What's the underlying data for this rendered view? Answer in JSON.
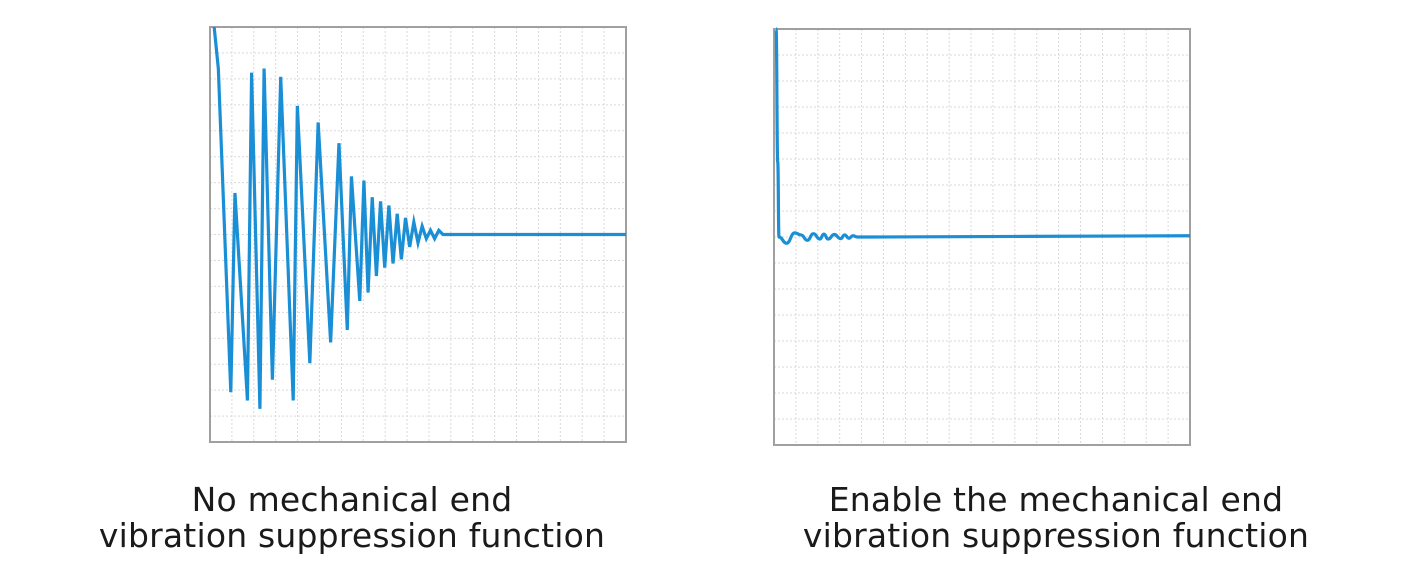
{
  "chart_data": [
    {
      "type": "line",
      "title": "",
      "xlabel": "",
      "ylabel": "",
      "grid": true,
      "line_color": "#1a8fd6",
      "frame_color": "#a0a0a0",
      "grid_color": "#d9d9d9",
      "caption": {
        "line1": "No mechanical end",
        "line2": "vibration suppression function"
      },
      "xlim": [
        0,
        100
      ],
      "ylim": [
        -50,
        50
      ],
      "x": [
        1,
        2,
        5,
        6,
        9,
        10,
        12,
        13,
        15,
        17,
        20,
        21,
        24,
        26,
        29,
        31,
        33,
        34,
        36,
        37,
        38,
        39,
        40,
        41,
        42,
        43,
        44,
        45,
        46,
        47,
        48,
        49,
        50,
        51,
        52,
        53,
        54,
        55,
        56,
        57,
        58,
        59,
        60,
        61,
        100
      ],
      "y": [
        50,
        40,
        -38,
        10,
        -40,
        39,
        -42,
        40,
        -35,
        38,
        -40,
        31,
        -31,
        27,
        -26,
        22,
        -23,
        14,
        -16,
        13,
        -14,
        9,
        -10,
        8,
        -8,
        7,
        -7,
        5,
        -6,
        4,
        -3,
        3,
        -2,
        2,
        -1,
        1,
        -1,
        1,
        0,
        0,
        0,
        0,
        0,
        0,
        0
      ]
    },
    {
      "type": "line",
      "title": "",
      "xlabel": "",
      "ylabel": "",
      "grid": true,
      "line_color": "#1a8fd6",
      "frame_color": "#a0a0a0",
      "grid_color": "#d9d9d9",
      "caption": {
        "line1": "Enable the mechanical end",
        "line2": "vibration suppression function"
      },
      "xlim": [
        0,
        100
      ],
      "ylim": [
        -50,
        50
      ],
      "x": [
        0.5,
        0.9,
        1.2,
        3,
        5,
        6.5,
        8,
        9.5,
        11,
        12,
        13,
        14.5,
        16,
        17,
        18,
        19,
        20,
        21,
        22,
        23,
        100
      ],
      "y": [
        50,
        18,
        0,
        -1.5,
        1,
        0.5,
        -0.8,
        0.8,
        -0.5,
        0.7,
        -0.5,
        0.6,
        -0.4,
        0.5,
        -0.3,
        0.3,
        0,
        0,
        0,
        0,
        0.3
      ]
    }
  ]
}
